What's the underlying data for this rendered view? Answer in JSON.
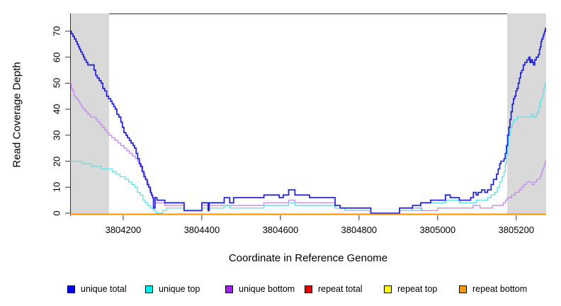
{
  "chart_data": {
    "type": "line",
    "subtype": "step-coverage",
    "title": "",
    "xlabel": "Coordinate in Reference Genome",
    "ylabel": "Read Coverage Depth",
    "xlim": [
      3804065,
      3805276
    ],
    "ylim": [
      0,
      70
    ],
    "x_ticks": [
      3804200,
      3804400,
      3804600,
      3804800,
      3805000,
      3805200
    ],
    "x_tick_labels": [
      "3804200",
      "3804400",
      "3804600",
      "3804800",
      "3805000",
      "3805200"
    ],
    "y_ticks": [
      0,
      10,
      20,
      30,
      40,
      50,
      60,
      70
    ],
    "y_tick_labels": [
      "0",
      "10",
      "20",
      "30",
      "40",
      "50",
      "60",
      "70"
    ],
    "grid": false,
    "legend_position": "bottom",
    "shaded_regions": [
      {
        "start": 3804065,
        "end": 3804164,
        "color": "#d9d9d9"
      },
      {
        "start": 3805177,
        "end": 3805276,
        "color": "#d9d9d9"
      }
    ],
    "series": [
      {
        "name": "unique total",
        "legend_color": "#0000ee",
        "line_color": "#2727d8",
        "points": [
          [
            3804065,
            70
          ],
          [
            3804068,
            69
          ],
          [
            3804072,
            68
          ],
          [
            3804076,
            67
          ],
          [
            3804080,
            66
          ],
          [
            3804083,
            65
          ],
          [
            3804086,
            64
          ],
          [
            3804089,
            63
          ],
          [
            3804092,
            62
          ],
          [
            3804096,
            61
          ],
          [
            3804099,
            60
          ],
          [
            3804102,
            59
          ],
          [
            3804106,
            58
          ],
          [
            3804110,
            57
          ],
          [
            3804126,
            55
          ],
          [
            3804130,
            53
          ],
          [
            3804134,
            52
          ],
          [
            3804139,
            51
          ],
          [
            3804144,
            50
          ],
          [
            3804148,
            48
          ],
          [
            3804153,
            47
          ],
          [
            3804158,
            45
          ],
          [
            3804163,
            44
          ],
          [
            3804168,
            43
          ],
          [
            3804172,
            42
          ],
          [
            3804176,
            41
          ],
          [
            3804180,
            40
          ],
          [
            3804184,
            38
          ],
          [
            3804189,
            37
          ],
          [
            3804194,
            35
          ],
          [
            3804198,
            33
          ],
          [
            3804202,
            31
          ],
          [
            3804207,
            30
          ],
          [
            3804211,
            29
          ],
          [
            3804216,
            28
          ],
          [
            3804220,
            27
          ],
          [
            3804225,
            26
          ],
          [
            3804229,
            25
          ],
          [
            3804233,
            23
          ],
          [
            3804237,
            21
          ],
          [
            3804241,
            19
          ],
          [
            3804245,
            18
          ],
          [
            3804249,
            16
          ],
          [
            3804253,
            14
          ],
          [
            3804257,
            13
          ],
          [
            3804261,
            11
          ],
          [
            3804265,
            10
          ],
          [
            3804269,
            8
          ],
          [
            3804272,
            7
          ],
          [
            3804275,
            6
          ],
          [
            3804277,
            2
          ],
          [
            3804281,
            6
          ],
          [
            3804286,
            5
          ],
          [
            3804306,
            4
          ],
          [
            3804355,
            1
          ],
          [
            3804400,
            4
          ],
          [
            3804416,
            1
          ],
          [
            3804419,
            4
          ],
          [
            3804457,
            6
          ],
          [
            3804471,
            4
          ],
          [
            3804481,
            6
          ],
          [
            3804558,
            7
          ],
          [
            3804597,
            6
          ],
          [
            3804607,
            7
          ],
          [
            3804621,
            9
          ],
          [
            3804637,
            7
          ],
          [
            3804674,
            6
          ],
          [
            3804739,
            3
          ],
          [
            3804752,
            2
          ],
          [
            3804830,
            0
          ],
          [
            3804903,
            2
          ],
          [
            3804936,
            3
          ],
          [
            3804957,
            4
          ],
          [
            3804982,
            5
          ],
          [
            3805020,
            7
          ],
          [
            3805032,
            6
          ],
          [
            3805055,
            5
          ],
          [
            3805084,
            6
          ],
          [
            3805091,
            8
          ],
          [
            3805098,
            7
          ],
          [
            3805103,
            8
          ],
          [
            3805112,
            9
          ],
          [
            3805120,
            8
          ],
          [
            3805127,
            9
          ],
          [
            3805136,
            11
          ],
          [
            3805142,
            13
          ],
          [
            3805150,
            15
          ],
          [
            3805154,
            17
          ],
          [
            3805158,
            19
          ],
          [
            3805161,
            20
          ],
          [
            3805169,
            21
          ],
          [
            3805172,
            23
          ],
          [
            3805175,
            26
          ],
          [
            3805178,
            30
          ],
          [
            3805181,
            33
          ],
          [
            3805184,
            36
          ],
          [
            3805187,
            39
          ],
          [
            3805190,
            42
          ],
          [
            3805193,
            44
          ],
          [
            3805196,
            45
          ],
          [
            3805199,
            47
          ],
          [
            3805202,
            48
          ],
          [
            3805205,
            50
          ],
          [
            3805208,
            52
          ],
          [
            3805211,
            54
          ],
          [
            3805214,
            55
          ],
          [
            3805218,
            57
          ],
          [
            3805222,
            58
          ],
          [
            3805227,
            59
          ],
          [
            3805232,
            60
          ],
          [
            3805235,
            58
          ],
          [
            3805238,
            59
          ],
          [
            3805241,
            58
          ],
          [
            3805244,
            57
          ],
          [
            3805247,
            59
          ],
          [
            3805251,
            60
          ],
          [
            3805256,
            61
          ],
          [
            3805259,
            63
          ],
          [
            3805261,
            64
          ],
          [
            3805263,
            66
          ],
          [
            3805265,
            67
          ],
          [
            3805268,
            68
          ],
          [
            3805270,
            69
          ],
          [
            3805272,
            70
          ],
          [
            3805274,
            71
          ]
        ]
      },
      {
        "name": "unique top",
        "legend_color": "#00eeee",
        "line_color": "#63e3e8",
        "points": [
          [
            3804065,
            20
          ],
          [
            3804095,
            19
          ],
          [
            3804120,
            18
          ],
          [
            3804145,
            17
          ],
          [
            3804172,
            16
          ],
          [
            3804182,
            15
          ],
          [
            3804192,
            14
          ],
          [
            3804205,
            13
          ],
          [
            3804214,
            12
          ],
          [
            3804222,
            11
          ],
          [
            3804229,
            10
          ],
          [
            3804236,
            8
          ],
          [
            3804243,
            7
          ],
          [
            3804250,
            5
          ],
          [
            3804256,
            4
          ],
          [
            3804262,
            3
          ],
          [
            3804269,
            2
          ],
          [
            3804277,
            1
          ],
          [
            3804284,
            0
          ],
          [
            3804300,
            1
          ],
          [
            3804310,
            2
          ],
          [
            3804355,
            1
          ],
          [
            3804400,
            2
          ],
          [
            3804457,
            3
          ],
          [
            3804471,
            2
          ],
          [
            3804558,
            3
          ],
          [
            3804621,
            4
          ],
          [
            3804637,
            3
          ],
          [
            3804674,
            3
          ],
          [
            3804739,
            2
          ],
          [
            3804764,
            1
          ],
          [
            3804830,
            0
          ],
          [
            3804903,
            1
          ],
          [
            3804957,
            4
          ],
          [
            3805020,
            5
          ],
          [
            3805055,
            4
          ],
          [
            3805098,
            5
          ],
          [
            3805127,
            6
          ],
          [
            3805136,
            7
          ],
          [
            3805145,
            8
          ],
          [
            3805152,
            10
          ],
          [
            3805158,
            12
          ],
          [
            3805164,
            14
          ],
          [
            3805169,
            16
          ],
          [
            3805172,
            19
          ],
          [
            3805175,
            22
          ],
          [
            3805178,
            26
          ],
          [
            3805181,
            30
          ],
          [
            3805185,
            33
          ],
          [
            3805190,
            35
          ],
          [
            3805196,
            36
          ],
          [
            3805203,
            37
          ],
          [
            3805237,
            37
          ],
          [
            3805240,
            38
          ],
          [
            3805244,
            37
          ],
          [
            3805251,
            38
          ],
          [
            3805255,
            39
          ],
          [
            3805258,
            41
          ],
          [
            3805261,
            43
          ],
          [
            3805264,
            44
          ],
          [
            3805267,
            46
          ],
          [
            3805270,
            48
          ],
          [
            3805272,
            49
          ],
          [
            3805274,
            50
          ]
        ]
      },
      {
        "name": "unique bottom",
        "legend_color": "#a020f0",
        "line_color": "#c490e8",
        "points": [
          [
            3804065,
            50
          ],
          [
            3804068,
            48
          ],
          [
            3804071,
            47
          ],
          [
            3804075,
            45
          ],
          [
            3804080,
            44
          ],
          [
            3804086,
            43
          ],
          [
            3804090,
            42
          ],
          [
            3804094,
            41
          ],
          [
            3804098,
            40
          ],
          [
            3804104,
            39
          ],
          [
            3804110,
            38
          ],
          [
            3804117,
            37
          ],
          [
            3804131,
            36
          ],
          [
            3804136,
            35
          ],
          [
            3804142,
            34
          ],
          [
            3804147,
            33
          ],
          [
            3804153,
            32
          ],
          [
            3804158,
            31
          ],
          [
            3804164,
            30
          ],
          [
            3804171,
            29
          ],
          [
            3804179,
            28
          ],
          [
            3804187,
            27
          ],
          [
            3804194,
            26
          ],
          [
            3804202,
            25
          ],
          [
            3804209,
            24
          ],
          [
            3804216,
            23
          ],
          [
            3804224,
            22
          ],
          [
            3804231,
            21
          ],
          [
            3804237,
            20
          ],
          [
            3804242,
            18
          ],
          [
            3804247,
            16
          ],
          [
            3804251,
            15
          ],
          [
            3804256,
            13
          ],
          [
            3804260,
            12
          ],
          [
            3804264,
            10
          ],
          [
            3804268,
            9
          ],
          [
            3804271,
            7
          ],
          [
            3804274,
            6
          ],
          [
            3804277,
            5
          ],
          [
            3804281,
            4
          ],
          [
            3804290,
            4
          ],
          [
            3804306,
            3
          ],
          [
            3804355,
            1
          ],
          [
            3804400,
            3
          ],
          [
            3804457,
            3
          ],
          [
            3804481,
            3
          ],
          [
            3804558,
            4
          ],
          [
            3804621,
            5
          ],
          [
            3804637,
            4
          ],
          [
            3804674,
            4
          ],
          [
            3804739,
            2
          ],
          [
            3804764,
            1
          ],
          [
            3804830,
            0
          ],
          [
            3804903,
            1
          ],
          [
            3804936,
            2
          ],
          [
            3804960,
            1
          ],
          [
            3805000,
            2
          ],
          [
            3805062,
            2
          ],
          [
            3805090,
            3
          ],
          [
            3805108,
            2
          ],
          [
            3805140,
            3
          ],
          [
            3805158,
            3
          ],
          [
            3805167,
            4
          ],
          [
            3805173,
            5
          ],
          [
            3805177,
            6
          ],
          [
            3805188,
            7
          ],
          [
            3805197,
            8
          ],
          [
            3805207,
            9
          ],
          [
            3805213,
            10
          ],
          [
            3805219,
            11
          ],
          [
            3805226,
            12
          ],
          [
            3805240,
            11
          ],
          [
            3805246,
            12
          ],
          [
            3805252,
            13
          ],
          [
            3805257,
            13
          ],
          [
            3805260,
            14
          ],
          [
            3805263,
            15
          ],
          [
            3805265,
            16
          ],
          [
            3805267,
            17
          ],
          [
            3805270,
            18
          ],
          [
            3805272,
            19
          ],
          [
            3805274,
            20
          ]
        ]
      },
      {
        "name": "repeat total",
        "legend_color": "#ee0000",
        "line_color": "#ee0000",
        "points": [
          [
            3804065,
            0
          ],
          [
            3805275,
            0
          ]
        ]
      },
      {
        "name": "repeat top",
        "legend_color": "#ffff00",
        "line_color": "#ffff00",
        "points": [
          [
            3804065,
            0
          ],
          [
            3805275,
            0
          ]
        ]
      },
      {
        "name": "repeat bottom",
        "legend_color": "#ff9900",
        "line_color": "#ff8f00",
        "points": [
          [
            3804065,
            0
          ],
          [
            3805275,
            0
          ]
        ]
      }
    ]
  },
  "legend": {
    "items": [
      {
        "label": "unique total",
        "color": "#0000ee"
      },
      {
        "label": "unique top",
        "color": "#00eeee"
      },
      {
        "label": "unique bottom",
        "color": "#a020f0"
      },
      {
        "label": "repeat total",
        "color": "#ee0000"
      },
      {
        "label": "repeat top",
        "color": "#ffff00"
      },
      {
        "label": "repeat bottom",
        "color": "#ff9900"
      }
    ]
  }
}
